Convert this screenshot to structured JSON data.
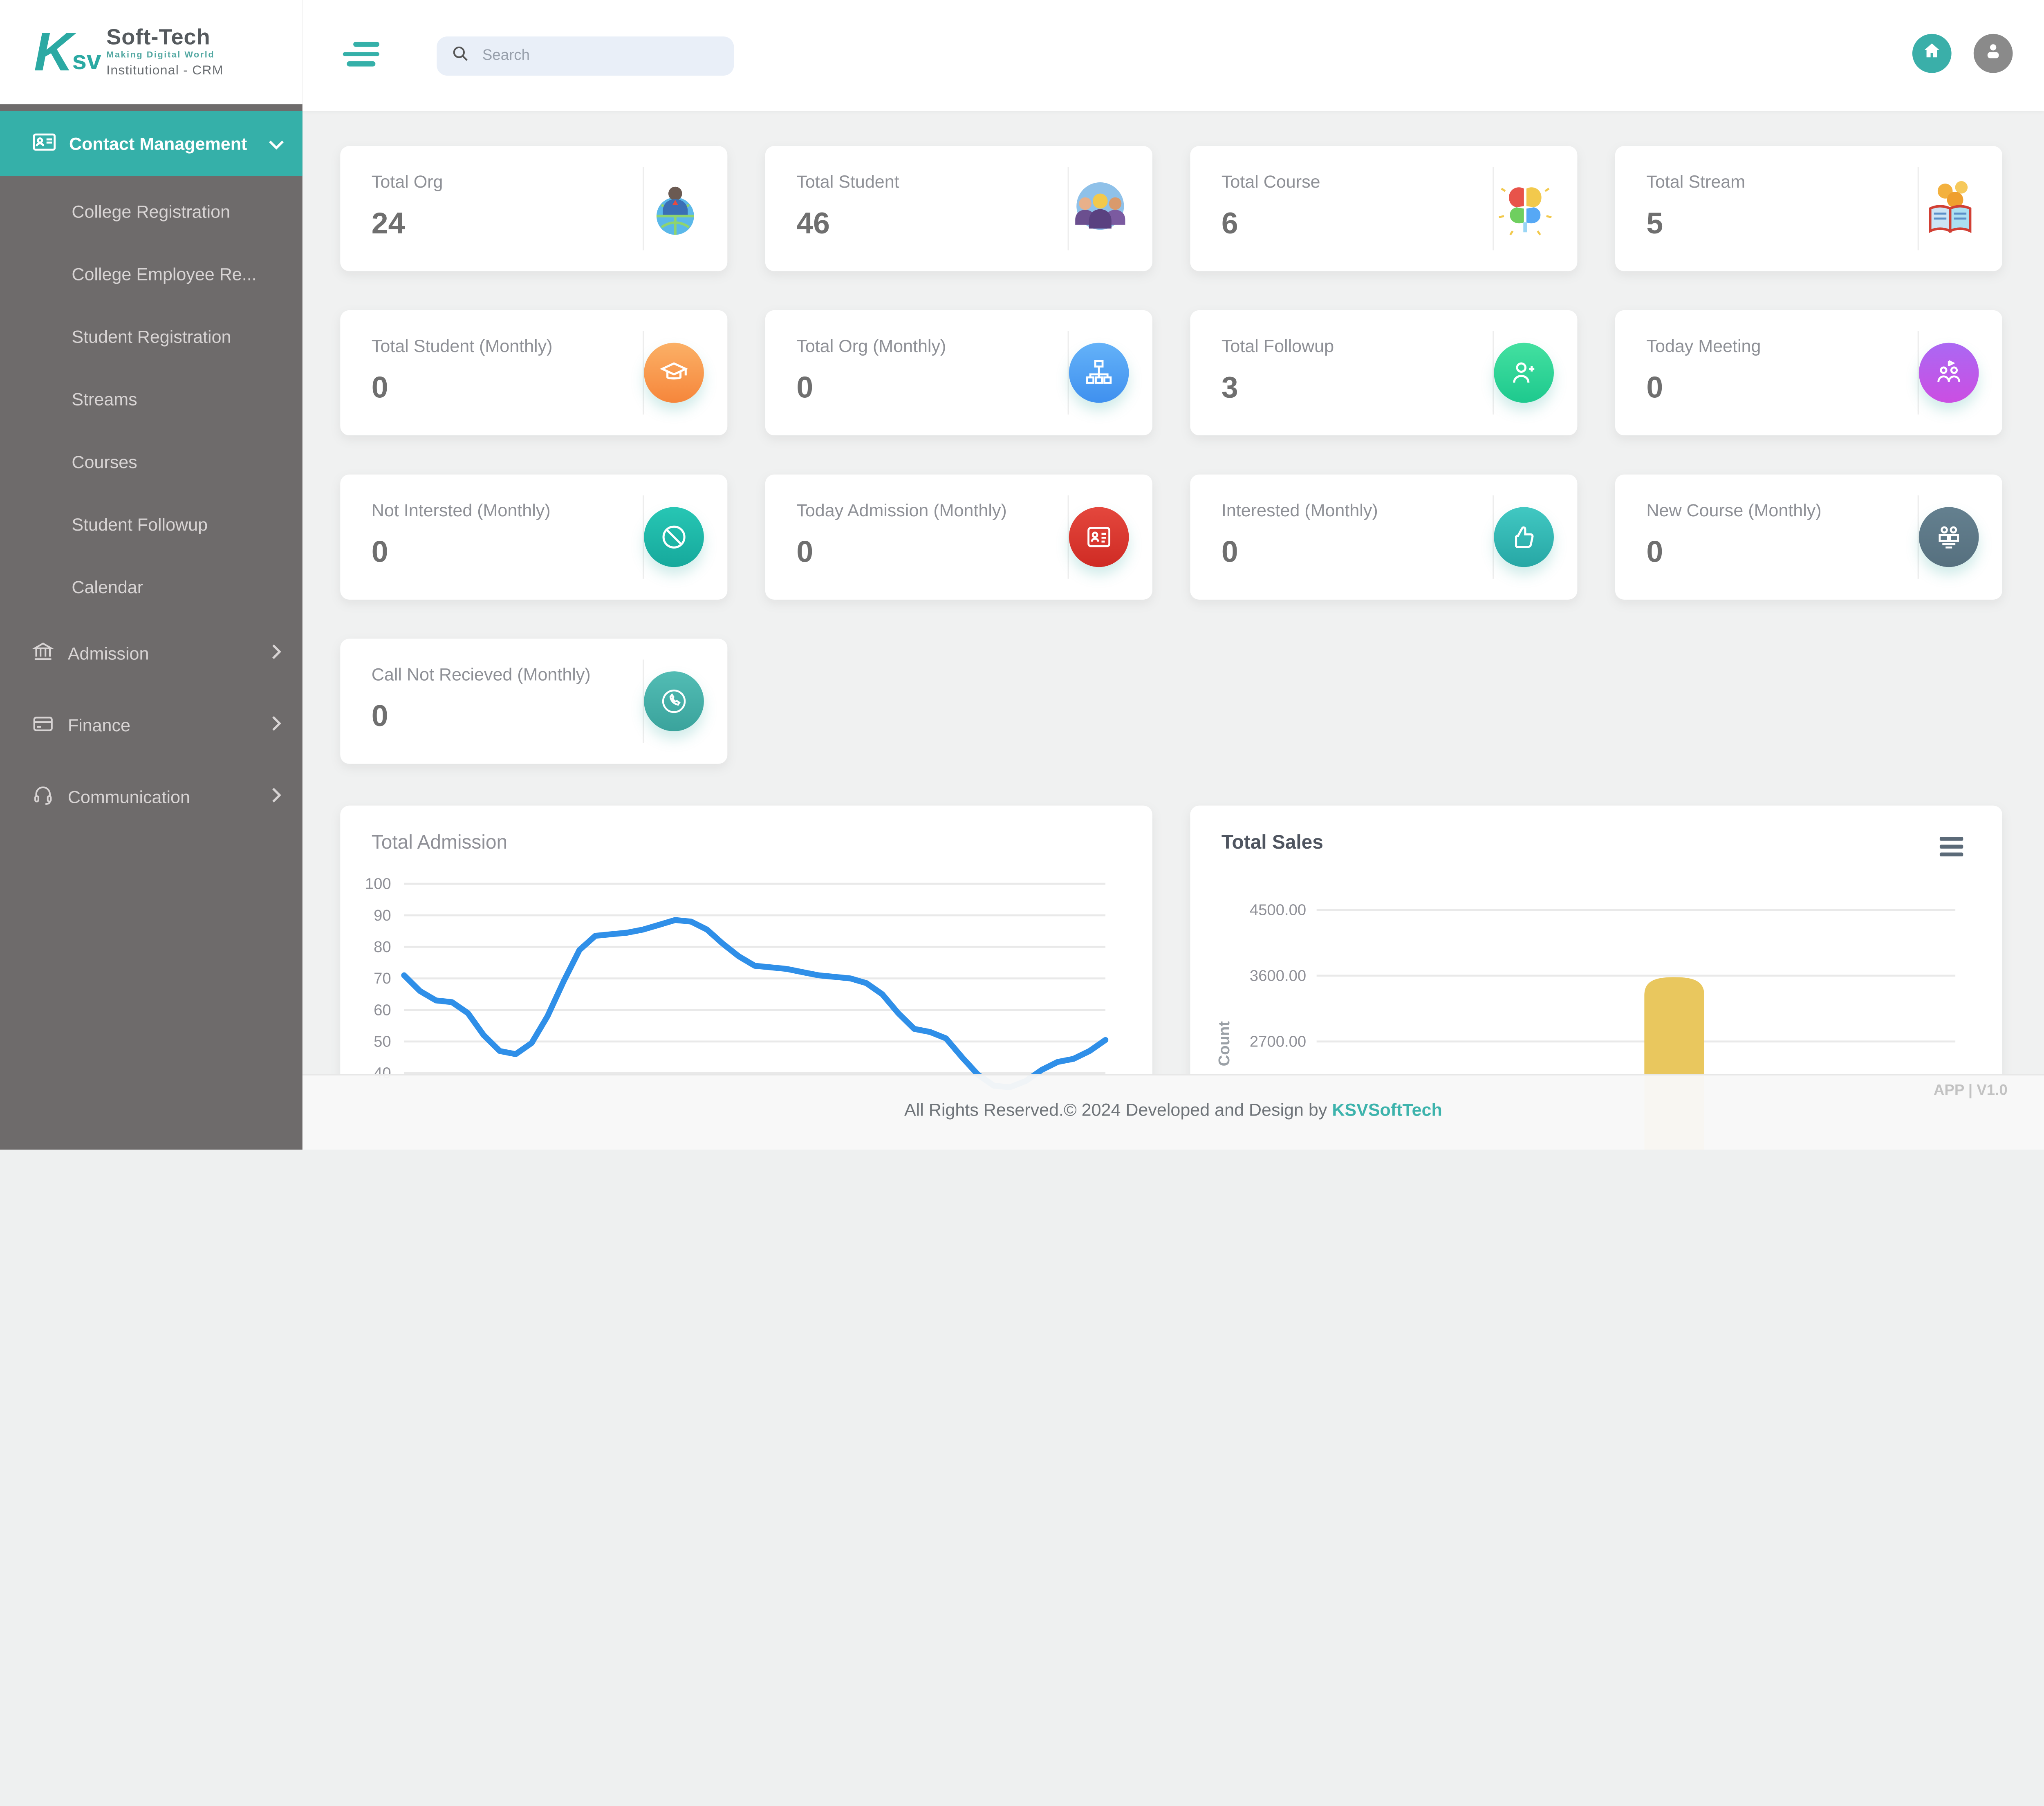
{
  "brand": {
    "mark": "K",
    "mark_sub": "sv",
    "name": "Soft-Tech",
    "tagline": "Making Digital World",
    "product": "Institutional - CRM"
  },
  "topbar": {
    "search_placeholder": "Search"
  },
  "sidebar": {
    "active": {
      "label": "Contact Management"
    },
    "sub_items": [
      {
        "label": "College Registration"
      },
      {
        "label": "College Employee Re..."
      },
      {
        "label": "Student Registration"
      },
      {
        "label": "Streams"
      },
      {
        "label": "Courses"
      },
      {
        "label": "Student Followup"
      },
      {
        "label": "Calendar"
      }
    ],
    "sections": [
      {
        "label": "Admission",
        "icon": "bank-icon"
      },
      {
        "label": "Finance",
        "icon": "credit-card-icon"
      },
      {
        "label": "Communication",
        "icon": "headset-icon"
      }
    ]
  },
  "stat_cards": [
    {
      "label": "Total Org",
      "value": "24",
      "icon": "businessman-globe"
    },
    {
      "label": "Total Student",
      "value": "46",
      "icon": "students-group"
    },
    {
      "label": "Total Course",
      "value": "6",
      "icon": "colorful-brain"
    },
    {
      "label": "Total Stream",
      "value": "5",
      "icon": "open-book-coins"
    },
    {
      "label": "Total Student (Monthly)",
      "value": "0",
      "icon": "graduation-cap",
      "circle_colors": [
        "#fbb066",
        "#f6863b"
      ]
    },
    {
      "label": "Total Org (Monthly)",
      "value": "0",
      "icon": "sitemap",
      "circle_colors": [
        "#64b2f8",
        "#3f90ef"
      ]
    },
    {
      "label": "Total Followup",
      "value": "3",
      "icon": "user-plus",
      "circle_colors": [
        "#43e0a0",
        "#1ec98e"
      ]
    },
    {
      "label": "Today Meeting",
      "value": "0",
      "icon": "meeting-people",
      "circle_colors": [
        "#ab68f3",
        "#cb4ee2"
      ]
    },
    {
      "label": "Not Intersted (Monthly)",
      "value": "0",
      "icon": "ban",
      "circle_colors": [
        "#27c6b4",
        "#16a99c"
      ]
    },
    {
      "label": "Today Admission (Monthly)",
      "value": "0",
      "icon": "id-card",
      "circle_colors": [
        "#e4473d",
        "#cf2b24"
      ]
    },
    {
      "label": "Interested (Monthly)",
      "value": "0",
      "icon": "thumbs-up",
      "circle_colors": [
        "#41c8c2",
        "#27a7a5"
      ]
    },
    {
      "label": "New Course (Monthly)",
      "value": "0",
      "icon": "course-stack",
      "circle_colors": [
        "#64808f",
        "#56707f"
      ]
    },
    {
      "label": "Call Not Recieved (Monthly)",
      "value": "0",
      "icon": "phone-circle",
      "circle_colors": [
        "#52bcb4",
        "#3aa39c"
      ]
    }
  ],
  "chart_data": [
    {
      "type": "line",
      "title": "Total Admission",
      "xlabel": "",
      "ylabel": "",
      "yticks": [
        100,
        90,
        80,
        70,
        60,
        50,
        40
      ],
      "ylim": [
        40,
        100
      ],
      "grid": true,
      "legend": false,
      "line_color": "#2f8fe8",
      "values": [
        71,
        66,
        63,
        62.5,
        59,
        52,
        47,
        46,
        49.5,
        58,
        69,
        79,
        83.5,
        84,
        84.5,
        85.5,
        87,
        88.5,
        88,
        85.5,
        81,
        77,
        74,
        73.5,
        73,
        72,
        71,
        70.5,
        70,
        68.5,
        65,
        59,
        54,
        53,
        51,
        45,
        39.5,
        36,
        35.5,
        37.5,
        41,
        43.5,
        44.5,
        47,
        50.5
      ],
      "note": "x-axis labels cut off below visible viewport"
    },
    {
      "type": "bar",
      "title": "Total Sales",
      "xlabel": "",
      "ylabel": "Count",
      "yticks": [
        "4500.00",
        "3600.00",
        "2700.00"
      ],
      "grid": true,
      "legend": false,
      "bar_color": "#e9c75e",
      "bars": [
        {
          "position_fraction": 0.56,
          "value": 3580
        }
      ],
      "note": "category axis cut off below visible viewport"
    }
  ],
  "footer": {
    "copyright_prefix": "All Rights Reserved.© 2024 Developed and Design by ",
    "brand": "KSVSoftTech",
    "version": "APP | V1.0"
  },
  "colors": {
    "accent_teal": "#35b0a9",
    "sidebar_gray": "#6e6b6b",
    "line_blue": "#2f8fe8",
    "bar_yellow": "#e9c75e"
  }
}
